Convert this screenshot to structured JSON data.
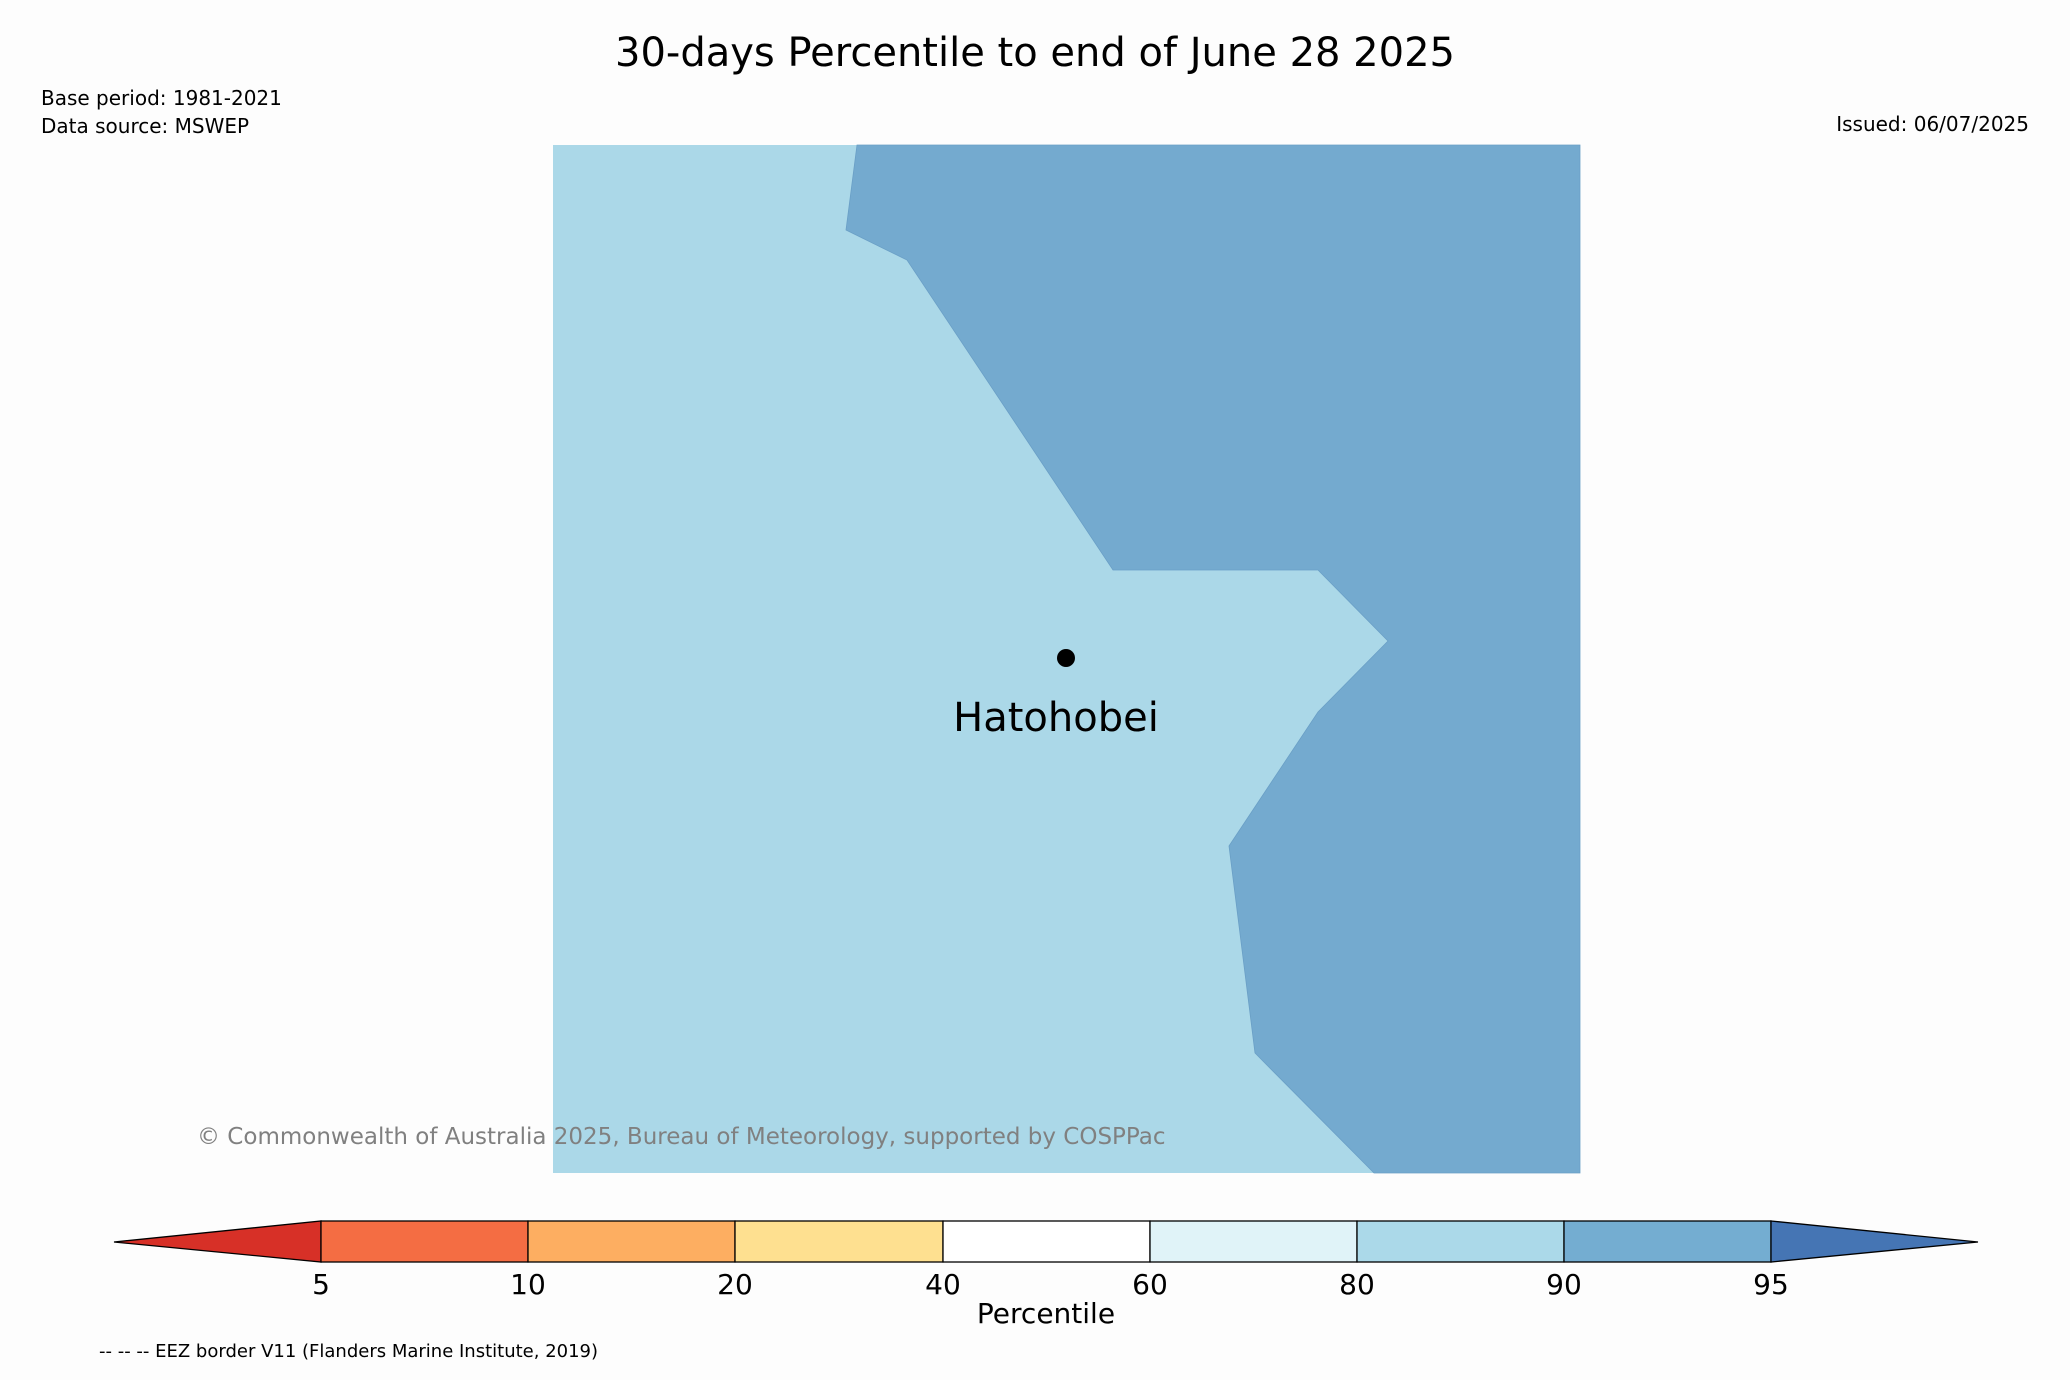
{
  "title": "30-days Percentile to end of June 28 2025",
  "meta": {
    "base_period": "Base period: 1981-2021",
    "data_source": "Data source: MSWEP",
    "issued": "Issued: 06/07/2025"
  },
  "map": {
    "location": {
      "name": "Hatohobei",
      "marker": "dot"
    },
    "fill_colors": {
      "region_80_90": "#abd8e8",
      "region_90_95": "#74aacf"
    },
    "copyright": "© Commonwealth of Australia 2025, Bureau of Meteorology, supported by COSPPac"
  },
  "legend": {
    "label": "Percentile",
    "ticks": [
      "5",
      "10",
      "20",
      "40",
      "60",
      "80",
      "90",
      "95"
    ],
    "colors": [
      "#d73027",
      "#f46d43",
      "#fdae61",
      "#fee090",
      "#ffffff",
      "#e0f3f8",
      "#abd9e9",
      "#74add1",
      "#4575b4"
    ]
  },
  "footer_note": "-- -- -- EEZ border V11 (Flanders Marine Institute, 2019)"
}
